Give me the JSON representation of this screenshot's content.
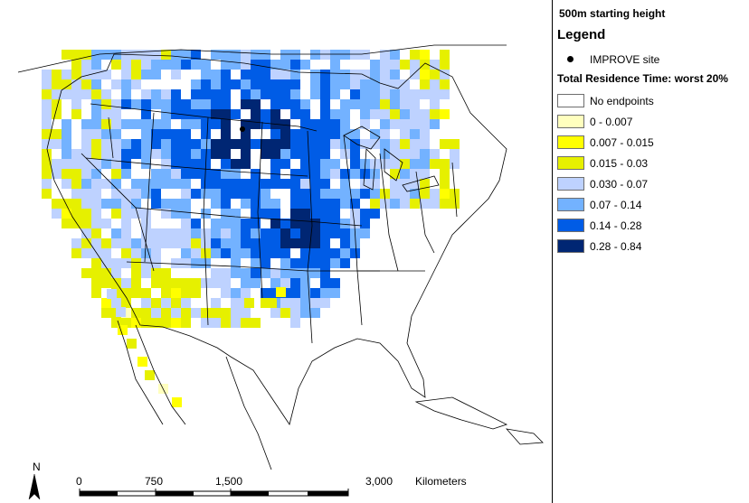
{
  "legend": {
    "height_label": "500m starting height",
    "title": "Legend",
    "site_label": "IMPROVE site",
    "subtitle": "Total Residence Time: worst 20%",
    "classes": [
      {
        "label": "No endpoints",
        "color": "#ffffff"
      },
      {
        "label": "0 - 0.007",
        "color": "#ffffbe"
      },
      {
        "label": "0.007 - 0.015",
        "color": "#ffff00"
      },
      {
        "label": "0.015 - 0.03",
        "color": "#e6f000"
      },
      {
        "label": "0.030 - 0.07",
        "color": "#bed2ff"
      },
      {
        "label": "0.07 - 0.14",
        "color": "#73b2ff"
      },
      {
        "label": "0.14 - 0.28",
        "color": "#005ce6"
      },
      {
        "label": "0.28 - 0.84",
        "color": "#002673"
      }
    ]
  },
  "scalebar": {
    "ticks": [
      "0",
      "750",
      "1,500",
      "3,000"
    ],
    "units": "Kilometers",
    "north_label": "N"
  }
}
